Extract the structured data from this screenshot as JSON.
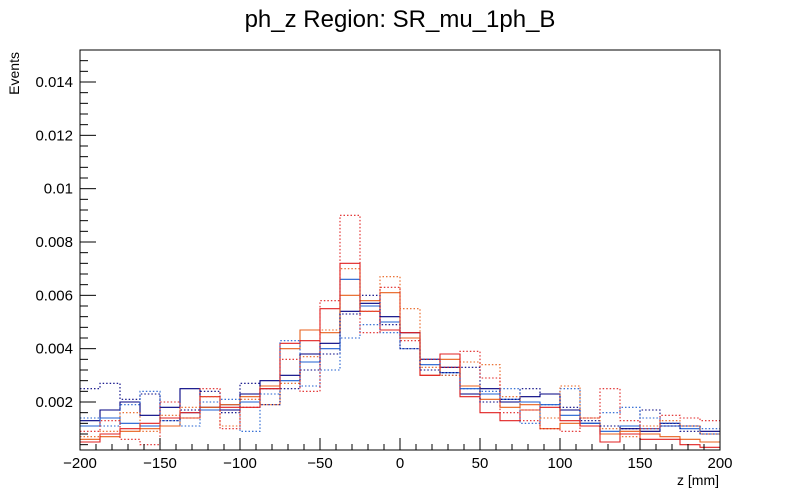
{
  "chart_data": {
    "type": "histogram",
    "title": "ph_z Region: SR_mu_1ph_B",
    "xlabel": "z [mm]",
    "ylabel": "Events",
    "xlim": [
      -200,
      200
    ],
    "ylim": [
      0.0002,
      0.0152
    ],
    "bin_width": 12.5,
    "x_ticks": [
      -200,
      -150,
      -100,
      -50,
      0,
      50,
      100,
      150,
      200
    ],
    "y_ticks": [
      0.002,
      0.004,
      0.006,
      0.008,
      0.01,
      0.012,
      0.014
    ],
    "y_tick_labels": [
      "0.002",
      "0.004",
      "0.006",
      "0.008",
      "0.01",
      "0.012",
      "0.014"
    ],
    "series": [
      {
        "name": "navy_solid",
        "color": "#000080",
        "style": "solid",
        "values": [
          0.0013,
          0.0017,
          0.002,
          0.0015,
          0.0018,
          0.0025,
          0.0018,
          0.0017,
          0.0023,
          0.0028,
          0.003,
          0.0038,
          0.0042,
          0.0054,
          0.0057,
          0.0052,
          0.0046,
          0.0036,
          0.0033,
          0.0023,
          0.0025,
          0.002,
          0.0022,
          0.0023,
          0.0017,
          0.0012,
          0.0008,
          0.001,
          0.0009,
          0.0012,
          0.0011,
          0.0009
        ]
      },
      {
        "name": "blue_solid",
        "color": "#1f5fd0",
        "style": "solid",
        "values": [
          0.0011,
          0.0014,
          0.0012,
          0.0011,
          0.0014,
          0.0016,
          0.0017,
          0.0019,
          0.002,
          0.0025,
          0.0028,
          0.0035,
          0.004,
          0.0066,
          0.0056,
          0.005,
          0.0044,
          0.0034,
          0.0031,
          0.0025,
          0.0023,
          0.0021,
          0.002,
          0.0019,
          0.0015,
          0.0012,
          0.0009,
          0.0011,
          0.001,
          0.0011,
          0.001,
          0.0008
        ]
      },
      {
        "name": "orange_solid",
        "color": "#e8601c",
        "style": "solid",
        "values": [
          0.0006,
          0.0007,
          0.0009,
          0.001,
          0.0011,
          0.0014,
          0.0018,
          0.0019,
          0.0022,
          0.0026,
          0.004,
          0.0047,
          0.0046,
          0.006,
          0.0058,
          0.0061,
          0.0044,
          0.003,
          0.0036,
          0.0026,
          0.0021,
          0.0018,
          0.0019,
          0.001,
          0.0012,
          0.0011,
          0.0008,
          0.0009,
          0.0008,
          0.0007,
          0.0006,
          0.0005
        ]
      },
      {
        "name": "red_solid",
        "color": "#e02020",
        "style": "solid",
        "values": [
          0.0005,
          0.0008,
          0.001,
          0.0012,
          0.0014,
          0.0016,
          0.0022,
          0.0018,
          0.0018,
          0.0025,
          0.0042,
          0.0043,
          0.0055,
          0.0072,
          0.0054,
          0.0047,
          0.0046,
          0.003,
          0.0038,
          0.0022,
          0.0016,
          0.0013,
          0.0017,
          0.0018,
          0.0013,
          0.0011,
          0.0005,
          0.0008,
          0.0006,
          0.0006,
          0.0004,
          0.0003
        ]
      },
      {
        "name": "navy_dotted",
        "color": "#000080",
        "style": "dotted",
        "values": [
          0.0025,
          0.0027,
          0.0021,
          0.0023,
          0.0013,
          0.0017,
          0.0024,
          0.0016,
          0.0027,
          0.0019,
          0.0025,
          0.0032,
          0.0038,
          0.0053,
          0.006,
          0.0049,
          0.004,
          0.0032,
          0.0031,
          0.0033,
          0.002,
          0.0021,
          0.0025,
          0.0023,
          0.0018,
          0.0013,
          0.0011,
          0.001,
          0.0017,
          0.0011,
          0.0009,
          0.0008
        ]
      },
      {
        "name": "blue_dotted",
        "color": "#1f5fd0",
        "style": "dotted",
        "values": [
          0.0014,
          0.0011,
          0.0019,
          0.0024,
          0.0013,
          0.0011,
          0.002,
          0.0021,
          0.0009,
          0.0023,
          0.0043,
          0.0026,
          0.0032,
          0.0044,
          0.0049,
          0.0046,
          0.004,
          0.0036,
          0.003,
          0.0025,
          0.0024,
          0.0025,
          0.0012,
          0.0019,
          0.0025,
          0.0014,
          0.0016,
          0.0018,
          0.0014,
          0.0012,
          0.0011,
          0.001
        ]
      },
      {
        "name": "orange_dotted",
        "color": "#e8601c",
        "style": "dotted",
        "values": [
          0.0007,
          0.0009,
          0.0016,
          0.0009,
          0.0015,
          0.0018,
          0.0022,
          0.0011,
          0.0021,
          0.0019,
          0.0027,
          0.0037,
          0.0047,
          0.007,
          0.0054,
          0.0067,
          0.0055,
          0.0033,
          0.003,
          0.0035,
          0.0034,
          0.0022,
          0.0017,
          0.0014,
          0.0026,
          0.0014,
          0.001,
          0.0007,
          0.0011,
          0.0013,
          0.0011,
          0.0008
        ]
      },
      {
        "name": "red_dotted",
        "color": "#e02020",
        "style": "dotted",
        "values": [
          0.0009,
          0.0013,
          0.0006,
          0.0004,
          0.002,
          0.0014,
          0.0025,
          0.001,
          0.0018,
          0.0025,
          0.0036,
          0.0024,
          0.0058,
          0.009,
          0.0046,
          0.0063,
          0.0043,
          0.0036,
          0.0033,
          0.0039,
          0.0029,
          0.0016,
          0.0013,
          0.001,
          0.0009,
          0.0014,
          0.0025,
          0.0013,
          0.001,
          0.0015,
          0.0014,
          0.0013
        ]
      }
    ]
  }
}
